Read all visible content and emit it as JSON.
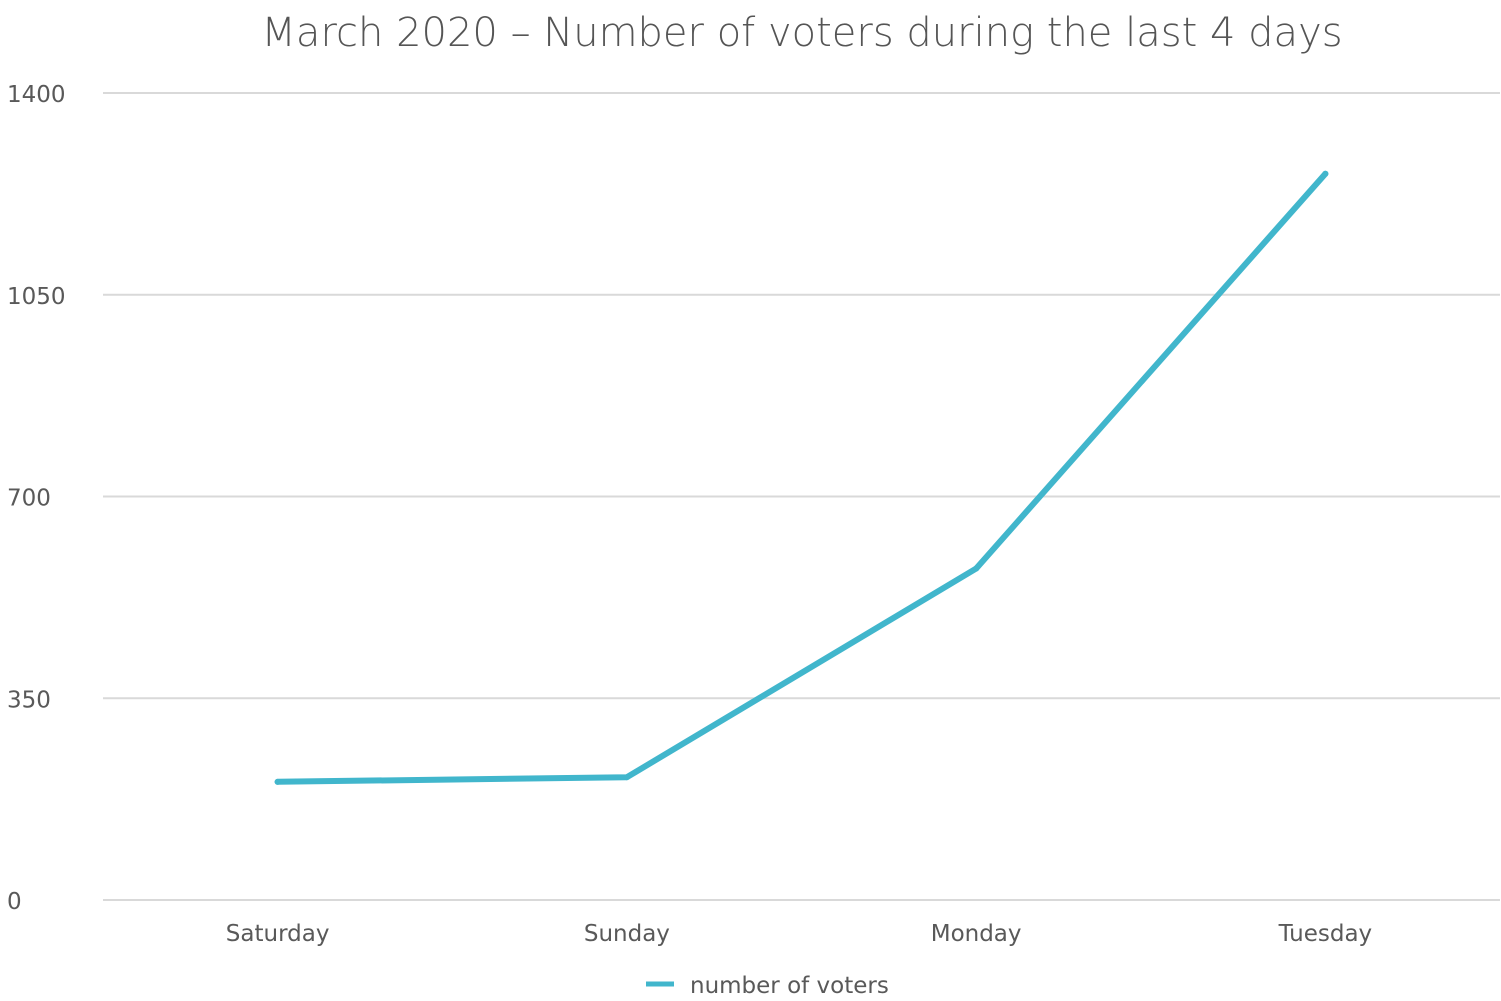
{
  "chart_data": {
    "type": "line",
    "title": "March 2020 – Number of voters during the last 4 days",
    "xlabel": "",
    "ylabel": "",
    "categories": [
      "Saturday",
      "Sunday",
      "Monday",
      "Tuesday"
    ],
    "series": [
      {
        "name": "number of voters",
        "color": "#41b6cc",
        "values": [
          205,
          213,
          575,
          1260
        ]
      }
    ],
    "ylim": [
      0,
      1400
    ],
    "yticks": [
      0,
      350,
      700,
      1050,
      1400
    ],
    "ytick_labels": [
      "0",
      "350",
      "700",
      "1050",
      "1400"
    ],
    "grid": true,
    "legend_position": "bottom-center"
  }
}
